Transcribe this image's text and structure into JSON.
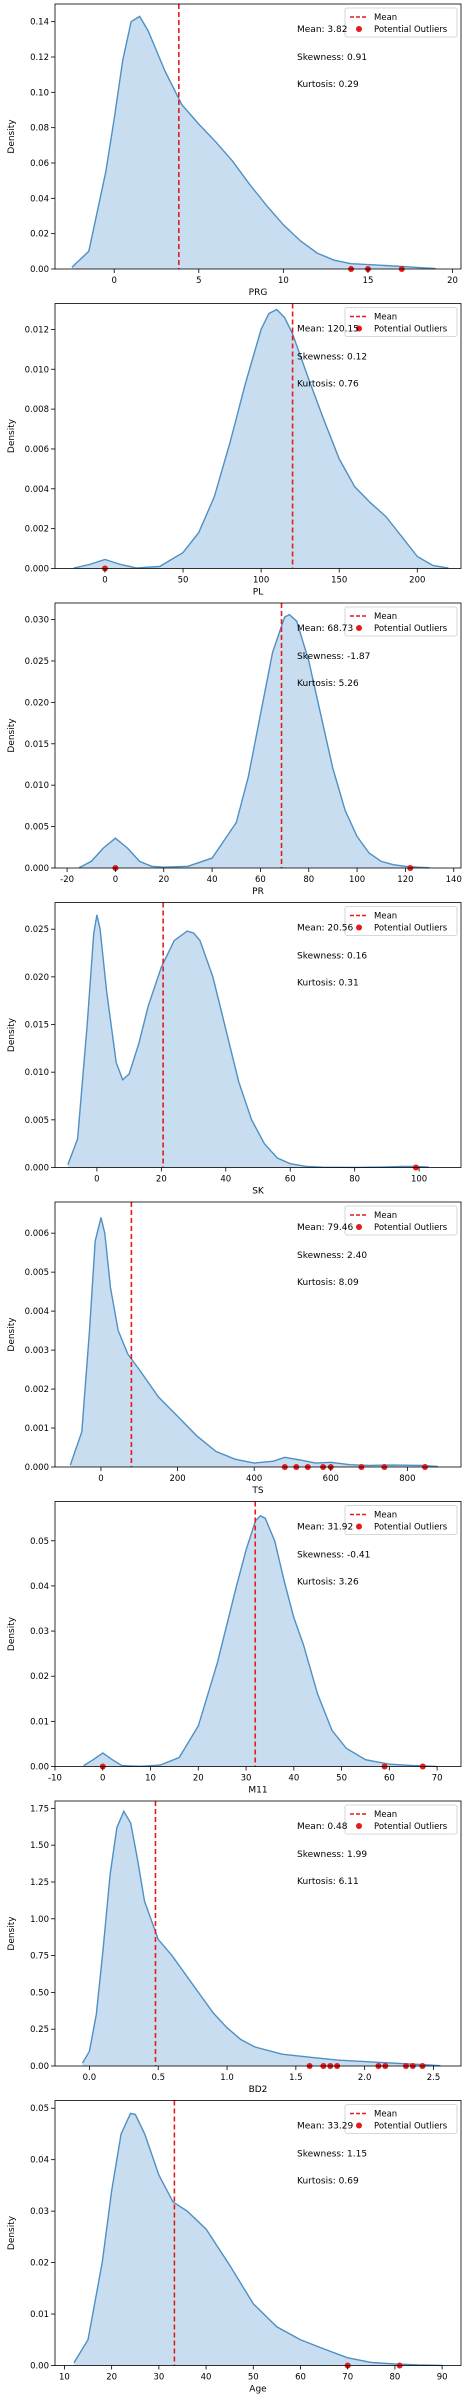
{
  "colors": {
    "fill": "#c6dbef",
    "line": "#4e90c4",
    "mean": "#e41a1c",
    "outlier": "#e41a1c",
    "axis": "#000000"
  },
  "legend": {
    "mean_label": "Mean",
    "outlier_label": "Potential Outliers"
  },
  "ylabel": "Density",
  "chart_data": [
    {
      "type": "area",
      "xlabel": "PRG",
      "xlim": [
        -3.5,
        20.5
      ],
      "ylim": [
        0,
        0.15
      ],
      "xticks": [
        0,
        5,
        10,
        15,
        20
      ],
      "yticks": [
        0.0,
        0.02,
        0.04,
        0.06,
        0.08,
        0.1,
        0.12,
        0.14
      ],
      "ytick_labels": [
        "0.00",
        "0.02",
        "0.04",
        "0.06",
        "0.08",
        "0.10",
        "0.12",
        "0.14"
      ],
      "stats": {
        "mean": "Mean: 3.82",
        "skewness": "Skewness: 0.91",
        "kurtosis": "Kurtosis: 0.29"
      },
      "mean": 3.82,
      "outliers": [
        14,
        15,
        17
      ],
      "x": [
        -2.5,
        -1.5,
        -0.5,
        0,
        0.5,
        1,
        1.5,
        2,
        3,
        4,
        5,
        6,
        7,
        8,
        9,
        10,
        11,
        12,
        13,
        14,
        15,
        16,
        17,
        18,
        19
      ],
      "y": [
        0.001,
        0.01,
        0.055,
        0.085,
        0.118,
        0.14,
        0.143,
        0.135,
        0.112,
        0.093,
        0.082,
        0.072,
        0.061,
        0.048,
        0.036,
        0.025,
        0.016,
        0.009,
        0.005,
        0.003,
        0.0025,
        0.002,
        0.0015,
        0.0008,
        0.0002
      ]
    },
    {
      "type": "area",
      "xlabel": "PL",
      "xlim": [
        -32,
        228
      ],
      "ylim": [
        0,
        0.0133
      ],
      "xticks": [
        0,
        50,
        100,
        150,
        200
      ],
      "yticks": [
        0.0,
        0.002,
        0.004,
        0.006,
        0.008,
        0.01,
        0.012
      ],
      "ytick_labels": [
        "0.000",
        "0.002",
        "0.004",
        "0.006",
        "0.008",
        "0.010",
        "0.012"
      ],
      "stats": {
        "mean": "Mean: 120.15",
        "skewness": "Skewness: 0.12",
        "kurtosis": "Kurtosis: 0.76"
      },
      "mean": 120.15,
      "outliers": [
        0
      ],
      "x": [
        -20,
        -10,
        0,
        10,
        20,
        35,
        50,
        60,
        70,
        80,
        90,
        100,
        105,
        110,
        115,
        120,
        130,
        140,
        150,
        160,
        170,
        180,
        190,
        200,
        210,
        220
      ],
      "y": [
        2e-05,
        0.0002,
        0.00045,
        0.0002,
        3e-05,
        0.0001,
        0.0008,
        0.0018,
        0.0036,
        0.0063,
        0.0093,
        0.012,
        0.0128,
        0.013,
        0.0126,
        0.0118,
        0.0096,
        0.0075,
        0.0055,
        0.0041,
        0.0033,
        0.0026,
        0.0016,
        0.0006,
        0.00015,
        2e-05
      ]
    },
    {
      "type": "area",
      "xlabel": "PR",
      "xlim": [
        -25,
        143
      ],
      "ylim": [
        0,
        0.032
      ],
      "xticks": [
        -20,
        0,
        20,
        40,
        60,
        80,
        100,
        120,
        140
      ],
      "yticks": [
        0.0,
        0.005,
        0.01,
        0.015,
        0.02,
        0.025,
        0.03
      ],
      "ytick_labels": [
        "0.000",
        "0.005",
        "0.010",
        "0.015",
        "0.020",
        "0.025",
        "0.030"
      ],
      "stats": {
        "mean": "Mean: 68.73",
        "skewness": "Skewness: -1.87",
        "kurtosis": "Kurtosis: 5.26"
      },
      "mean": 68.73,
      "outliers": [
        0,
        122
      ],
      "x": [
        -15,
        -10,
        -5,
        0,
        5,
        10,
        15,
        20,
        30,
        40,
        50,
        55,
        60,
        65,
        70,
        72,
        75,
        80,
        85,
        90,
        95,
        100,
        105,
        110,
        115,
        120,
        125,
        130
      ],
      "y": [
        5e-05,
        0.0008,
        0.0024,
        0.0036,
        0.0024,
        0.0008,
        0.0002,
        0.0001,
        0.0002,
        0.0012,
        0.0055,
        0.011,
        0.0185,
        0.026,
        0.0303,
        0.0306,
        0.0298,
        0.025,
        0.0185,
        0.012,
        0.007,
        0.0038,
        0.0018,
        0.0008,
        0.0004,
        0.0002,
        0.0001,
        2e-05
      ]
    },
    {
      "type": "area",
      "xlabel": "SK",
      "xlim": [
        -13,
        113
      ],
      "ylim": [
        0,
        0.0278
      ],
      "xticks": [
        0,
        20,
        40,
        60,
        80,
        100
      ],
      "yticks": [
        0.0,
        0.005,
        0.01,
        0.015,
        0.02,
        0.025
      ],
      "ytick_labels": [
        "0.000",
        "0.005",
        "0.010",
        "0.015",
        "0.020",
        "0.025"
      ],
      "stats": {
        "mean": "Mean: 20.56",
        "skewness": "Skewness: 0.16",
        "kurtosis": "Kurtosis: 0.31"
      },
      "mean": 20.56,
      "outliers": [
        99
      ],
      "x": [
        -9,
        -6,
        -3,
        -1,
        0,
        1,
        3,
        6,
        8,
        10,
        13,
        16,
        20,
        24,
        28,
        30,
        32,
        36,
        40,
        44,
        48,
        52,
        56,
        60,
        65,
        70,
        80,
        90,
        95,
        99,
        103
      ],
      "y": [
        0.0003,
        0.003,
        0.015,
        0.0245,
        0.0265,
        0.025,
        0.0185,
        0.011,
        0.0092,
        0.0098,
        0.013,
        0.017,
        0.021,
        0.0238,
        0.0248,
        0.0246,
        0.0238,
        0.02,
        0.0145,
        0.009,
        0.005,
        0.0025,
        0.001,
        0.0004,
        0.00012,
        3e-05,
        1e-05,
        5e-05,
        0.0001,
        0.00012,
        4e-05
      ]
    },
    {
      "type": "area",
      "xlabel": "TS",
      "xlim": [
        -120,
        940
      ],
      "ylim": [
        0,
        0.0068
      ],
      "xticks": [
        0,
        200,
        400,
        600,
        800
      ],
      "yticks": [
        0.0,
        0.001,
        0.002,
        0.003,
        0.004,
        0.005,
        0.006
      ],
      "ytick_labels": [
        "0.000",
        "0.001",
        "0.002",
        "0.003",
        "0.004",
        "0.005",
        "0.006"
      ],
      "stats": {
        "mean": "Mean: 79.46",
        "skewness": "Skewness: 2.40",
        "kurtosis": "Kurtosis: 8.09"
      },
      "mean": 79.46,
      "outliers": [
        480,
        510,
        540,
        580,
        600,
        680,
        740,
        846
      ],
      "x": [
        -80,
        -50,
        -30,
        -15,
        0,
        10,
        25,
        45,
        70,
        100,
        150,
        200,
        250,
        300,
        350,
        400,
        450,
        480,
        520,
        560,
        600,
        650,
        700,
        760,
        840,
        880
      ],
      "y": [
        5e-05,
        0.0009,
        0.0035,
        0.0058,
        0.0064,
        0.006,
        0.0046,
        0.0035,
        0.0029,
        0.0025,
        0.0018,
        0.0013,
        0.0008,
        0.0004,
        0.0002,
        0.0001,
        0.00015,
        0.00025,
        0.00018,
        0.0001,
        0.00012,
        6e-05,
        4e-05,
        5e-05,
        4e-05,
        1e-05
      ]
    },
    {
      "type": "area",
      "xlabel": "M11",
      "xlim": [
        -10,
        75
      ],
      "ylim": [
        0,
        0.0587
      ],
      "xticks": [
        -10,
        0,
        10,
        20,
        30,
        40,
        50,
        60,
        70
      ],
      "yticks": [
        0.0,
        0.01,
        0.02,
        0.03,
        0.04,
        0.05
      ],
      "ytick_labels": [
        "0.00",
        "0.01",
        "0.02",
        "0.03",
        "0.04",
        "0.05"
      ],
      "stats": {
        "mean": "Mean: 31.92",
        "skewness": "Skewness: -0.41",
        "kurtosis": "Kurtosis: 3.26"
      },
      "mean": 31.92,
      "outliers": [
        0,
        59,
        67
      ],
      "x": [
        -4,
        -2,
        0,
        2,
        4,
        8,
        12,
        16,
        20,
        24,
        28,
        30,
        32,
        33,
        34,
        36,
        38,
        40,
        42,
        45,
        48,
        51,
        55,
        60,
        65,
        70
      ],
      "y": [
        0.0002,
        0.0015,
        0.003,
        0.0015,
        0.0002,
        5e-05,
        0.0003,
        0.002,
        0.009,
        0.023,
        0.04,
        0.048,
        0.0545,
        0.0555,
        0.055,
        0.05,
        0.041,
        0.033,
        0.027,
        0.016,
        0.008,
        0.004,
        0.0015,
        0.0005,
        0.0002,
        3e-05
      ]
    },
    {
      "type": "area",
      "xlabel": "BD2",
      "xlim": [
        -0.25,
        2.7
      ],
      "ylim": [
        0,
        1.8
      ],
      "xticks": [
        0.0,
        0.5,
        1.0,
        1.5,
        2.0,
        2.5
      ],
      "yticks": [
        0.0,
        0.25,
        0.5,
        0.75,
        1.0,
        1.25,
        1.5,
        1.75
      ],
      "xtick_labels": [
        "0.0",
        "0.5",
        "1.0",
        "1.5",
        "2.0",
        "2.5"
      ],
      "ytick_labels": [
        "0.00",
        "0.25",
        "0.50",
        "0.75",
        "1.00",
        "1.25",
        "1.50",
        "1.75"
      ],
      "stats": {
        "mean": "Mean: 0.48",
        "skewness": "Skewness: 1.99",
        "kurtosis": "Kurtosis: 6.11"
      },
      "mean": 0.48,
      "outliers": [
        1.6,
        1.7,
        1.75,
        1.8,
        2.1,
        2.15,
        2.3,
        2.35,
        2.42
      ],
      "x": [
        -0.05,
        0.0,
        0.05,
        0.1,
        0.15,
        0.2,
        0.25,
        0.3,
        0.35,
        0.4,
        0.5,
        0.6,
        0.7,
        0.8,
        0.9,
        1.0,
        1.1,
        1.2,
        1.4,
        1.6,
        1.8,
        2.0,
        2.2,
        2.4,
        2.55
      ],
      "y": [
        0.02,
        0.1,
        0.35,
        0.8,
        1.3,
        1.62,
        1.73,
        1.65,
        1.4,
        1.12,
        0.86,
        0.75,
        0.62,
        0.49,
        0.36,
        0.26,
        0.18,
        0.13,
        0.08,
        0.06,
        0.04,
        0.03,
        0.02,
        0.01,
        0.002
      ]
    },
    {
      "type": "area",
      "xlabel": "Age",
      "xlim": [
        8,
        94
      ],
      "ylim": [
        0,
        0.0515
      ],
      "xticks": [
        10,
        20,
        30,
        40,
        50,
        60,
        70,
        80,
        90
      ],
      "yticks": [
        0.0,
        0.01,
        0.02,
        0.03,
        0.04,
        0.05
      ],
      "ytick_labels": [
        "0.00",
        "0.01",
        "0.02",
        "0.03",
        "0.04",
        "0.05"
      ],
      "stats": {
        "mean": "Mean: 33.29",
        "skewness": "Skewness: 1.15",
        "kurtosis": "Kurtosis: 0.69"
      },
      "mean": 33.29,
      "outliers": [
        70,
        81
      ],
      "x": [
        12,
        15,
        18,
        20,
        22,
        24,
        25,
        27,
        30,
        33,
        36,
        40,
        45,
        50,
        55,
        60,
        65,
        70,
        75,
        80,
        85,
        90
      ],
      "y": [
        0.0005,
        0.005,
        0.02,
        0.034,
        0.045,
        0.049,
        0.0488,
        0.045,
        0.037,
        0.0318,
        0.03,
        0.0265,
        0.0195,
        0.012,
        0.0075,
        0.005,
        0.0032,
        0.0015,
        0.0006,
        0.0003,
        0.0001,
        2e-05
      ]
    }
  ]
}
